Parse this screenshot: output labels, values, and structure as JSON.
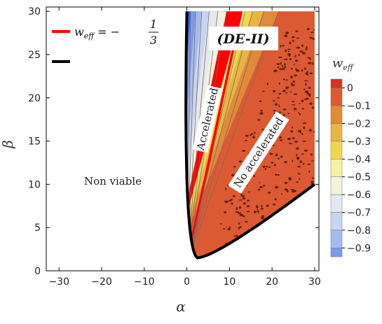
{
  "chart_data": {
    "type": "contour",
    "title": "(DE-II)",
    "xlabel": "α",
    "ylabel": "β",
    "xlim": [
      -33,
      31
    ],
    "ylim": [
      0,
      30.5
    ],
    "x_ticks": [
      -30,
      -20,
      -10,
      0,
      10,
      20,
      30
    ],
    "x_tick_labels": [
      "−30",
      "−20",
      "−10",
      "0",
      "10",
      "20",
      "30"
    ],
    "y_ticks": [
      0,
      5,
      10,
      15,
      20,
      25,
      30
    ],
    "y_tick_labels": [
      "0",
      "5",
      "10",
      "15",
      "20",
      "25",
      "30"
    ],
    "region_labels": {
      "non_viable": "Non viable",
      "accelerated": "Accelerated",
      "no_accelerated": "No accelerated"
    },
    "legend": {
      "placement": "top-left",
      "entries": [
        {
          "label_lhs": "w",
          "label_sub": "eff",
          "label_rhs": " = −",
          "frac_num": "1",
          "frac_den": "3",
          "color": "#ff0000"
        },
        {
          "label_lhs": "",
          "label_sub": "",
          "label_rhs": "",
          "frac_num": "",
          "frac_den": "",
          "color": "#000000"
        }
      ]
    },
    "colorbar": {
      "title_main": "w",
      "title_sub": "eff",
      "levels": [
        0.05,
        0,
        -0.1,
        -0.2,
        -0.3,
        -0.4,
        -0.5,
        -0.6,
        -0.7,
        -0.8,
        -0.9,
        -0.95
      ],
      "tick_labels": [
        "0",
        "−0.1",
        "−0.2",
        "−0.3",
        "−0.4",
        "−0.5",
        "−0.6",
        "−0.7",
        "−0.8",
        "−0.9"
      ],
      "band_colors": [
        "#d63226",
        "#db5a33",
        "#e08a3a",
        "#e8b545",
        "#f0d84e",
        "#f6f0a6",
        "#f3f1df",
        "#e3e8f0",
        "#c7d5f0",
        "#a3bbec",
        "#7c9be6",
        "#2f57e8"
      ]
    },
    "boundary_curve": {
      "vertex": [
        2.5,
        1.5
      ],
      "lower_branch_end": [
        30,
        10
      ],
      "upper_branch_end": [
        0,
        30
      ]
    },
    "contours_w_eff_vs_slope_alpha_over_beta": [
      {
        "w": -0.9,
        "slope": 0.03,
        "color": "#2f57e8"
      },
      {
        "w": -0.8,
        "slope": 0.07,
        "color": "#7c9be6"
      },
      {
        "w": -0.7,
        "slope": 0.12,
        "color": "#a3bbec"
      },
      {
        "w": -0.6,
        "slope": 0.18,
        "color": "#c7d5f0"
      },
      {
        "w": -0.5,
        "slope": 0.25,
        "color": "#e3e8f0"
      },
      {
        "w": -0.4,
        "slope": 0.32,
        "color": "#f3f1df"
      },
      {
        "w": -0.333,
        "slope": 0.44,
        "color": "#ff0000"
      },
      {
        "w": -0.3,
        "slope": 0.47,
        "color": "#f6f0a6"
      },
      {
        "w": -0.2,
        "slope": 0.53,
        "color": "#f0d84e"
      },
      {
        "w": -0.1,
        "slope": 0.62,
        "color": "#e8b545"
      },
      {
        "w": -0.05,
        "slope": 0.74,
        "color": "#e08a3a"
      }
    ],
    "grid": false
  }
}
